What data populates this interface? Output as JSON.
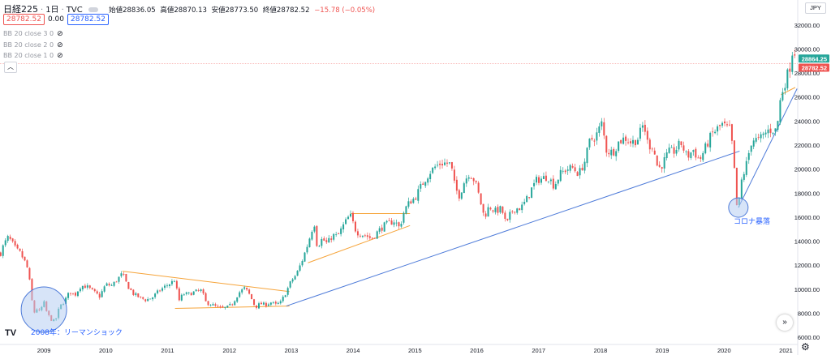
{
  "header": {
    "symbol": "日経225",
    "interval": "1日",
    "source": "TVC",
    "open_label": "始値",
    "open_value": "28836.05",
    "high_label": "高値",
    "high_value": "28870.13",
    "low_label": "安値",
    "low_value": "28773.50",
    "close_label": "終値",
    "close_value": "28782.52",
    "change": "−15.78 (−0.05%)"
  },
  "price_row": {
    "sell": "28782.52",
    "spread": "0.00",
    "buy": "28782.52"
  },
  "indicators": [
    "BB 20 close 3 0",
    "BB 20 close 2 0",
    "BB 20 close 1 0"
  ],
  "currency": "JPY",
  "icons": {
    "eye": "eye-icon",
    "collapse": "chevron-up-icon",
    "scroll": "double-chevron-right-icon",
    "settings": "gear-icon",
    "logo": "tradingview-logo"
  },
  "annotations": {
    "lehman": "2008年：リーマンショック",
    "corona": "コロナ暴落"
  },
  "colors": {
    "up": "#26a69a",
    "down": "#ef5350",
    "trend_blue": "#4e7bd9",
    "trend_orange": "#f6a43a",
    "circle_fill": "#b7cdf3",
    "circle_stroke": "#4e7bd9",
    "last_price_badge": "#ef5350",
    "prev_price_badge": "#26a69a"
  },
  "chart_data": {
    "type": "candlestick",
    "title": "",
    "xlabel": "",
    "ylabel": "",
    "x_ticks": [
      "2009",
      "2010",
      "2011",
      "2012",
      "2013",
      "2014",
      "2015",
      "2016",
      "2017",
      "2018",
      "2019",
      "2020",
      "2021"
    ],
    "y_ticks": [
      "6000.00",
      "8000.00",
      "10000.00",
      "12000.00",
      "14000.00",
      "16000.00",
      "18000.00",
      "20000.00",
      "22000.00",
      "24000.00",
      "26000.00",
      "28000.00",
      "30000.00",
      "32000.00"
    ],
    "ylim": [
      5400,
      33000
    ],
    "xlim": [
      2008.29,
      2021.19
    ],
    "price_labels": [
      {
        "text": "28864.25",
        "value": 28864.25,
        "color": "#26a69a"
      },
      {
        "text": "28782.52",
        "value": 28782.52,
        "color": "#ef5350"
      }
    ],
    "price_line": 28782.52,
    "series": [
      {
        "name": "日経225",
        "points": [
          [
            2008.3,
            13000
          ],
          [
            2008.35,
            13700
          ],
          [
            2008.42,
            14300
          ],
          [
            2008.47,
            14000
          ],
          [
            2008.55,
            13300
          ],
          [
            2008.62,
            13000
          ],
          [
            2008.7,
            12200
          ],
          [
            2008.75,
            11500
          ],
          [
            2008.8,
            9200
          ],
          [
            2008.85,
            8000
          ],
          [
            2008.88,
            8400
          ],
          [
            2008.93,
            8100
          ],
          [
            2009.0,
            8900
          ],
          [
            2009.05,
            8000
          ],
          [
            2009.1,
            7600
          ],
          [
            2009.15,
            7300
          ],
          [
            2009.2,
            7600
          ],
          [
            2009.25,
            8500
          ],
          [
            2009.33,
            9000
          ],
          [
            2009.42,
            9800
          ],
          [
            2009.5,
            9500
          ],
          [
            2009.6,
            10300
          ],
          [
            2009.7,
            10200
          ],
          [
            2009.8,
            9800
          ],
          [
            2009.9,
            9400
          ],
          [
            2010.0,
            10400
          ],
          [
            2010.1,
            10300
          ],
          [
            2010.2,
            10900
          ],
          [
            2010.27,
            11300
          ],
          [
            2010.35,
            10300
          ],
          [
            2010.45,
            9600
          ],
          [
            2010.55,
            9300
          ],
          [
            2010.65,
            9100
          ],
          [
            2010.75,
            9300
          ],
          [
            2010.85,
            9800
          ],
          [
            2010.95,
            10200
          ],
          [
            2011.05,
            10500
          ],
          [
            2011.12,
            10800
          ],
          [
            2011.18,
            9000
          ],
          [
            2011.25,
            9600
          ],
          [
            2011.35,
            9600
          ],
          [
            2011.45,
            9800
          ],
          [
            2011.55,
            9900
          ],
          [
            2011.62,
            8900
          ],
          [
            2011.72,
            8700
          ],
          [
            2011.8,
            8500
          ],
          [
            2011.88,
            8400
          ],
          [
            2011.97,
            8500
          ],
          [
            2012.05,
            8800
          ],
          [
            2012.15,
            9700
          ],
          [
            2012.25,
            10100
          ],
          [
            2012.33,
            9500
          ],
          [
            2012.42,
            8500
          ],
          [
            2012.5,
            8800
          ],
          [
            2012.58,
            8700
          ],
          [
            2012.67,
            8900
          ],
          [
            2012.75,
            8700
          ],
          [
            2012.83,
            8900
          ],
          [
            2012.92,
            9800
          ],
          [
            2013.0,
            10700
          ],
          [
            2013.08,
            11200
          ],
          [
            2013.17,
            12300
          ],
          [
            2013.27,
            13800
          ],
          [
            2013.37,
            15600
          ],
          [
            2013.42,
            13500
          ],
          [
            2013.5,
            14200
          ],
          [
            2013.58,
            13800
          ],
          [
            2013.67,
            14500
          ],
          [
            2013.75,
            14400
          ],
          [
            2013.83,
            15200
          ],
          [
            2013.95,
            16200
          ],
          [
            2014.05,
            14800
          ],
          [
            2014.12,
            14600
          ],
          [
            2014.2,
            14500
          ],
          [
            2014.3,
            14200
          ],
          [
            2014.4,
            14800
          ],
          [
            2014.5,
            15300
          ],
          [
            2014.58,
            15500
          ],
          [
            2014.67,
            15700
          ],
          [
            2014.75,
            15100
          ],
          [
            2014.83,
            16600
          ],
          [
            2014.92,
            17300
          ],
          [
            2015.0,
            17600
          ],
          [
            2015.08,
            18400
          ],
          [
            2015.17,
            19200
          ],
          [
            2015.25,
            19800
          ],
          [
            2015.33,
            20200
          ],
          [
            2015.42,
            20500
          ],
          [
            2015.5,
            20500
          ],
          [
            2015.58,
            20400
          ],
          [
            2015.65,
            18400
          ],
          [
            2015.72,
            17800
          ],
          [
            2015.8,
            19000
          ],
          [
            2015.88,
            19700
          ],
          [
            2015.97,
            19000
          ],
          [
            2016.05,
            17500
          ],
          [
            2016.12,
            16000
          ],
          [
            2016.2,
            16900
          ],
          [
            2016.3,
            16500
          ],
          [
            2016.4,
            16700
          ],
          [
            2016.48,
            15300
          ],
          [
            2016.55,
            16400
          ],
          [
            2016.62,
            16700
          ],
          [
            2016.72,
            16800
          ],
          [
            2016.8,
            17400
          ],
          [
            2016.88,
            18300
          ],
          [
            2016.97,
            19100
          ],
          [
            2017.05,
            19200
          ],
          [
            2017.15,
            19400
          ],
          [
            2017.25,
            18600
          ],
          [
            2017.35,
            19600
          ],
          [
            2017.45,
            20000
          ],
          [
            2017.55,
            20100
          ],
          [
            2017.65,
            19600
          ],
          [
            2017.75,
            20700
          ],
          [
            2017.83,
            22400
          ],
          [
            2017.92,
            22700
          ],
          [
            2018.02,
            23800
          ],
          [
            2018.1,
            21500
          ],
          [
            2018.2,
            21400
          ],
          [
            2018.3,
            22300
          ],
          [
            2018.4,
            22600
          ],
          [
            2018.5,
            22200
          ],
          [
            2018.6,
            22500
          ],
          [
            2018.7,
            23800
          ],
          [
            2018.77,
            22000
          ],
          [
            2018.85,
            21900
          ],
          [
            2018.93,
            20000
          ],
          [
            2019.0,
            20400
          ],
          [
            2019.1,
            21400
          ],
          [
            2019.2,
            21500
          ],
          [
            2019.3,
            22200
          ],
          [
            2019.4,
            21000
          ],
          [
            2019.5,
            21600
          ],
          [
            2019.6,
            20700
          ],
          [
            2019.7,
            21800
          ],
          [
            2019.8,
            22900
          ],
          [
            2019.88,
            23300
          ],
          [
            2019.97,
            23700
          ],
          [
            2020.05,
            23400
          ],
          [
            2020.1,
            23300
          ],
          [
            2020.15,
            21100
          ],
          [
            2020.2,
            17000
          ],
          [
            2020.23,
            16800
          ],
          [
            2020.28,
            19000
          ],
          [
            2020.35,
            20200
          ],
          [
            2020.45,
            22500
          ],
          [
            2020.55,
            22400
          ],
          [
            2020.62,
            22700
          ],
          [
            2020.7,
            23200
          ],
          [
            2020.78,
            23300
          ],
          [
            2020.85,
            23200
          ],
          [
            2020.9,
            25500
          ],
          [
            2020.95,
            26700
          ],
          [
            2021.02,
            27800
          ],
          [
            2021.07,
            28700
          ],
          [
            2021.12,
            30400
          ],
          [
            2021.15,
            29500
          ],
          [
            2021.18,
            28782
          ]
        ]
      }
    ],
    "trendlines": [
      {
        "color": "orange",
        "points": [
          [
            2010.27,
            11500
          ],
          [
            2012.97,
            9800
          ]
        ]
      },
      {
        "color": "orange",
        "points": [
          [
            2011.12,
            8400
          ],
          [
            2012.97,
            8600
          ]
        ]
      },
      {
        "color": "blue",
        "points": [
          [
            2012.92,
            8600
          ],
          [
            2020.25,
            21500
          ]
        ]
      },
      {
        "color": "orange",
        "points": [
          [
            2013.27,
            12200
          ],
          [
            2014.92,
            15300
          ]
        ]
      },
      {
        "color": "orange",
        "points": [
          [
            2013.97,
            16300
          ],
          [
            2014.92,
            16300
          ]
        ]
      },
      {
        "color": "blue",
        "points": [
          [
            2020.23,
            16800
          ],
          [
            2021.18,
            26700
          ]
        ]
      },
      {
        "color": "orange",
        "points": [
          [
            2020.92,
            26200
          ],
          [
            2021.15,
            26800
          ]
        ]
      }
    ],
    "circles": [
      {
        "cx": 2009.0,
        "cy": 8300,
        "label": "2008年：リーマンショック"
      },
      {
        "cx": 2020.23,
        "cy": 16800,
        "label": "コロナ暴落"
      }
    ]
  }
}
